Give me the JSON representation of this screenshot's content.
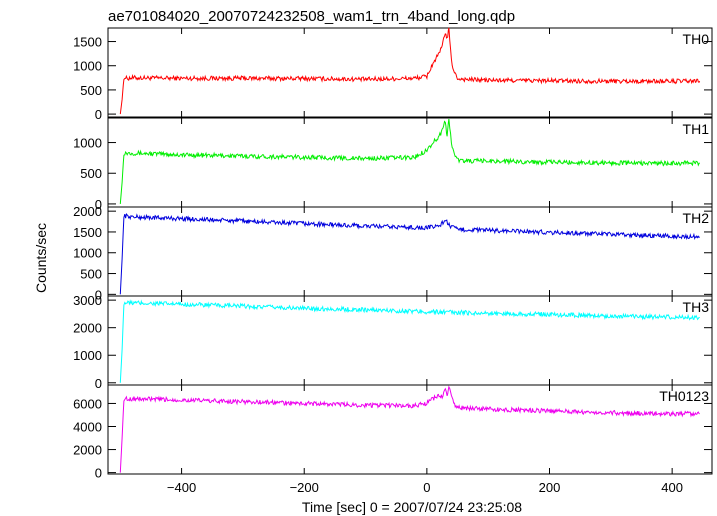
{
  "chart_data": {
    "type": "line",
    "title": "ae701084020_20070724232508_wam1_trn_4band_long.qdp",
    "xlabel": "Time [sec] 0 = 2007/07/24 23:25:08",
    "ylabel": "Counts/sec",
    "xlim": [
      -520,
      465
    ],
    "x_ticks": [
      -400,
      -200,
      0,
      200,
      400
    ],
    "x_tick_labels": [
      "−400",
      "−200",
      "0",
      "200",
      "400"
    ],
    "panels": [
      {
        "name": "TH0",
        "color": "#ff0000",
        "ylim": [
          -60,
          1780
        ],
        "y_ticks": [
          0,
          500,
          1000,
          1500
        ],
        "y_tick_labels": [
          "0",
          "500",
          "1000",
          "1500"
        ],
        "series": [
          {
            "x": [
              -500,
              -497,
              -494,
              -490,
              -480,
              -400,
              -300,
              -200,
              -100,
              -20,
              0,
              10,
              20,
              25,
              30,
              33,
              36,
              40,
              45,
              50,
              60,
              100,
              200,
              300,
              400,
              445
            ],
            "y": [
              0,
              300,
              760,
              740,
              750,
              740,
              740,
              735,
              720,
              740,
              780,
              1050,
              1250,
              1400,
              1700,
              1550,
              1750,
              1100,
              850,
              740,
              720,
              700,
              690,
              680,
              680,
              680
            ]
          }
        ]
      },
      {
        "name": "TH1",
        "color": "#00ee00",
        "ylim": [
          -50,
          1400
        ],
        "y_ticks": [
          0,
          500,
          1000
        ],
        "y_tick_labels": [
          "0",
          "500",
          "1000"
        ],
        "series": [
          {
            "x": [
              -500,
              -497,
              -494,
              -490,
              -480,
              -400,
              -300,
              -200,
              -100,
              -20,
              0,
              10,
              20,
              25,
              30,
              33,
              36,
              40,
              45,
              50,
              60,
              100,
              200,
              300,
              400,
              445
            ],
            "y": [
              0,
              350,
              830,
              830,
              830,
              800,
              780,
              760,
              740,
              760,
              880,
              1000,
              1100,
              1200,
              1350,
              1100,
              1380,
              1000,
              800,
              720,
              700,
              700,
              680,
              670,
              660,
              670
            ]
          }
        ]
      },
      {
        "name": "TH2",
        "color": "#0000dd",
        "ylim": [
          -40,
          2100
        ],
        "y_ticks": [
          0,
          500,
          1000,
          1500,
          2000
        ],
        "y_tick_labels": [
          "0",
          "500",
          "1000",
          "1500",
          "2000"
        ],
        "series": [
          {
            "x": [
              -500,
              -497,
              -494,
              -490,
              -480,
              -400,
              -300,
              -200,
              -100,
              0,
              20,
              30,
              35,
              40,
              50,
              100,
              200,
              300,
              400,
              445
            ],
            "y": [
              0,
              850,
              1900,
              1880,
              1860,
              1820,
              1760,
              1700,
              1640,
              1600,
              1650,
              1780,
              1700,
              1620,
              1560,
              1540,
              1490,
              1440,
              1400,
              1380
            ]
          }
        ]
      },
      {
        "name": "TH3",
        "color": "#00ffff",
        "ylim": [
          -80,
          3150
        ],
        "y_ticks": [
          0,
          1000,
          2000,
          3000
        ],
        "y_tick_labels": [
          "0",
          "1000",
          "2000",
          "3000"
        ],
        "series": [
          {
            "x": [
              -500,
              -497,
              -494,
              -490,
              -480,
              -400,
              -300,
              -200,
              -100,
              0,
              100,
              200,
              300,
              400,
              445
            ],
            "y": [
              0,
              1200,
              2900,
              2900,
              2900,
              2850,
              2780,
              2700,
              2650,
              2580,
              2520,
              2480,
              2420,
              2380,
              2370
            ]
          }
        ]
      },
      {
        "name": "TH0123",
        "color": "#ee00ee",
        "ylim": [
          -120,
          7600
        ],
        "y_ticks": [
          0,
          2000,
          4000,
          6000
        ],
        "y_tick_labels": [
          "0",
          "2000",
          "4000",
          "6000"
        ],
        "series": [
          {
            "x": [
              -500,
              -497,
              -494,
              -490,
              -480,
              -400,
              -300,
              -200,
              -100,
              -20,
              0,
              10,
              20,
              25,
              30,
              33,
              36,
              40,
              45,
              50,
              60,
              100,
              200,
              300,
              400,
              445
            ],
            "y": [
              0,
              3000,
              6400,
              6400,
              6400,
              6300,
              6150,
              6000,
              5850,
              5800,
              6000,
              6400,
              6700,
              6600,
              7200,
              6700,
              7400,
              6600,
              5900,
              5650,
              5600,
              5500,
              5350,
              5200,
              5100,
              5100
            ]
          }
        ]
      }
    ]
  }
}
